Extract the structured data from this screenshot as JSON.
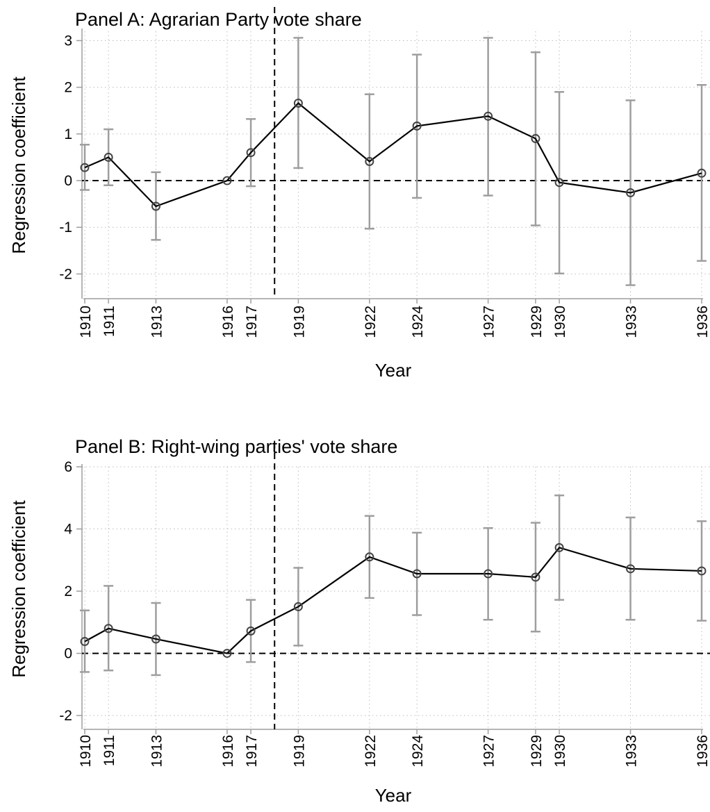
{
  "chart_data": [
    {
      "type": "line",
      "title": "Panel A: Agrarian Party vote share",
      "xlabel": "Year",
      "ylabel": "Regression coefficient",
      "x": [
        1910,
        1911,
        1913,
        1916,
        1917,
        1919,
        1922,
        1924,
        1927,
        1929,
        1930,
        1933,
        1936
      ],
      "x_ticks": [
        "1910",
        "1911",
        "1913",
        "1916",
        "1917",
        "1919",
        "1922",
        "1924",
        "1927",
        "1929",
        "1930",
        "1933",
        "1936"
      ],
      "y_ticks": [
        "3",
        "2",
        "1",
        "0",
        "-1",
        "-2"
      ],
      "ylim": [
        -2.5,
        3.2
      ],
      "series": [
        {
          "values": [
            0.28,
            0.5,
            -0.55,
            0.0,
            0.6,
            1.66,
            0.41,
            1.17,
            1.38,
            0.9,
            -0.04,
            -0.26,
            0.16
          ],
          "ci_low": [
            -0.2,
            -0.1,
            -1.27,
            0.0,
            -0.12,
            0.27,
            -1.03,
            -0.37,
            -0.32,
            -0.96,
            -1.99,
            -2.24,
            -1.72
          ],
          "ci_high": [
            0.77,
            1.1,
            0.18,
            0.0,
            1.32,
            3.06,
            1.85,
            2.7,
            3.06,
            2.75,
            1.9,
            1.72,
            2.05
          ]
        }
      ],
      "reference_lines": {
        "y": 0,
        "x": 1918
      },
      "grid": true,
      "colors": {
        "line": "#000000",
        "ci": "#9e9e9e",
        "grid": "#bdbdbd"
      }
    },
    {
      "type": "line",
      "title": "Panel B: Right-wing parties' vote share",
      "xlabel": "Year",
      "ylabel": "Regression coefficient",
      "x": [
        1910,
        1911,
        1913,
        1916,
        1917,
        1919,
        1922,
        1924,
        1927,
        1929,
        1930,
        1933,
        1936
      ],
      "x_ticks": [
        "1910",
        "1911",
        "1913",
        "1916",
        "1917",
        "1919",
        "1922",
        "1924",
        "1927",
        "1929",
        "1930",
        "1933",
        "1936"
      ],
      "y_ticks": [
        "6",
        "4",
        "2",
        "0",
        "-2"
      ],
      "ylim": [
        -2.4,
        6.0
      ],
      "series": [
        {
          "values": [
            0.38,
            0.8,
            0.46,
            0.0,
            0.72,
            1.5,
            3.1,
            2.56,
            2.56,
            2.45,
            3.4,
            2.72,
            2.65
          ],
          "ci_low": [
            -0.6,
            -0.55,
            -0.7,
            0.0,
            -0.28,
            0.25,
            1.78,
            1.23,
            1.08,
            0.7,
            1.72,
            1.08,
            1.05
          ],
          "ci_high": [
            1.38,
            2.17,
            1.62,
            0.0,
            1.72,
            2.75,
            4.42,
            3.88,
            4.03,
            4.2,
            5.08,
            4.37,
            4.25
          ]
        }
      ],
      "reference_lines": {
        "y": 0,
        "x": 1918
      },
      "grid": true,
      "colors": {
        "line": "#000000",
        "ci": "#9e9e9e",
        "grid": "#bdbdbd"
      }
    }
  ]
}
